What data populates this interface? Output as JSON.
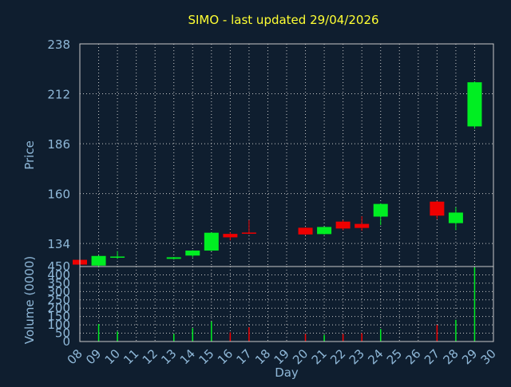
{
  "colors": {
    "background": "#0f1e2f",
    "title": "#ffff33",
    "axis_text": "#8fb8d8",
    "grid": "#c8c8c8",
    "frame": "#c8c8c8",
    "up": "#00ee22",
    "down": "#ee0000"
  },
  "chart_data": [
    {
      "type": "candlestick",
      "title": "SIMO - last updated 29/04/2026",
      "ylabel": "Price",
      "ylim": [
        122,
        238
      ],
      "y_ticks": [
        134,
        160,
        186,
        212,
        238
      ],
      "grid": true,
      "x_categories": [
        "08",
        "09",
        "10",
        "11",
        "12",
        "13",
        "14",
        "15",
        "16",
        "17",
        "18",
        "19",
        "20",
        "21",
        "22",
        "23",
        "24",
        "25",
        "26",
        "27",
        "28",
        "29",
        "30"
      ],
      "candles": [
        {
          "day": "08",
          "open": 125.5,
          "close": 123.0,
          "high": 125.8,
          "low": 122.6
        },
        {
          "day": "09",
          "open": 122.5,
          "close": 127.5,
          "high": 127.8,
          "low": 121.5
        },
        {
          "day": "10",
          "open": 126.6,
          "close": 127.2,
          "high": 130.0,
          "low": 126.0
        },
        {
          "day": "13",
          "open": 126.0,
          "close": 126.8,
          "high": 127.0,
          "low": 125.6
        },
        {
          "day": "14",
          "open": 127.7,
          "close": 130.3,
          "high": 130.5,
          "low": 126.8
        },
        {
          "day": "15",
          "open": 130.3,
          "close": 139.6,
          "high": 139.8,
          "low": 130.0
        },
        {
          "day": "16",
          "open": 139.0,
          "close": 137.2,
          "high": 139.8,
          "low": 135.6
        },
        {
          "day": "17",
          "open": 139.7,
          "close": 139.3,
          "high": 146.2,
          "low": 138.8
        },
        {
          "day": "20",
          "open": 142.2,
          "close": 138.7,
          "high": 142.4,
          "low": 138.3
        },
        {
          "day": "21",
          "open": 138.9,
          "close": 142.6,
          "high": 142.8,
          "low": 138.6
        },
        {
          "day": "22",
          "open": 145.4,
          "close": 141.8,
          "high": 146.2,
          "low": 140.9
        },
        {
          "day": "23",
          "open": 144.2,
          "close": 142.1,
          "high": 148.2,
          "low": 140.6
        },
        {
          "day": "24",
          "open": 148.0,
          "close": 154.6,
          "high": 154.9,
          "low": 143.6
        },
        {
          "day": "27",
          "open": 155.8,
          "close": 148.5,
          "high": 156.2,
          "low": 146.7
        },
        {
          "day": "28",
          "open": 144.6,
          "close": 150.1,
          "high": 152.9,
          "low": 141.0
        },
        {
          "day": "29",
          "open": 195.0,
          "close": 218.0,
          "high": 218.5,
          "low": 193.8
        }
      ]
    },
    {
      "type": "bar",
      "ylabel": "Volume (0000)",
      "xlabel": "Day",
      "ylim": [
        0,
        450
      ],
      "y_ticks": [
        0,
        50,
        100,
        150,
        200,
        250,
        300,
        350,
        400,
        450
      ],
      "grid": true,
      "categories": [
        "08",
        "09",
        "10",
        "11",
        "12",
        "13",
        "14",
        "15",
        "16",
        "17",
        "18",
        "19",
        "20",
        "21",
        "22",
        "23",
        "24",
        "25",
        "26",
        "27",
        "28",
        "29",
        "30"
      ],
      "values": [
        0,
        105,
        60,
        0,
        0,
        45,
        80,
        120,
        55,
        85,
        0,
        0,
        45,
        40,
        45,
        50,
        75,
        0,
        0,
        100,
        130,
        445,
        0
      ],
      "directions": [
        "none",
        "up",
        "up",
        "none",
        "none",
        "up",
        "up",
        "up",
        "down",
        "down",
        "none",
        "none",
        "down",
        "up",
        "down",
        "down",
        "up",
        "none",
        "none",
        "down",
        "up",
        "up",
        "none"
      ]
    }
  ]
}
